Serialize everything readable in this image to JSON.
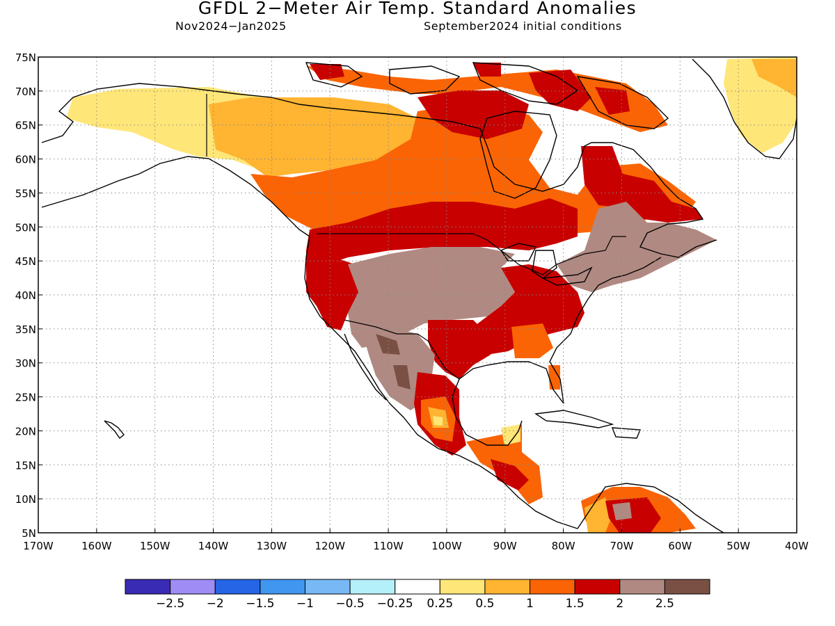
{
  "title": "GFDL 2−Meter Air Temp. Standard Anomalies",
  "subtitle_left": "Nov2024−Jan2025",
  "subtitle_right": "September2024 initial conditions",
  "map": {
    "lat_labels": [
      "75N",
      "70N",
      "65N",
      "60N",
      "55N",
      "50N",
      "45N",
      "40N",
      "35N",
      "30N",
      "25N",
      "20N",
      "15N",
      "10N",
      "5N"
    ],
    "lon_labels": [
      "170W",
      "160W",
      "150W",
      "140W",
      "130W",
      "120W",
      "110W",
      "100W",
      "90W",
      "80W",
      "70W",
      "60W",
      "50W",
      "40W"
    ],
    "lat_range": [
      5,
      75
    ],
    "lon_range": [
      -170,
      -40
    ],
    "gridlines": "dotted"
  },
  "colorbar": {
    "colors": [
      "#3a2bb4",
      "#a08cf5",
      "#2565e6",
      "#4196f0",
      "#78b8f5",
      "#b4f0fa",
      "#ffffff",
      "#ffe678",
      "#ffb432",
      "#fa6404",
      "#c80000",
      "#b08a82",
      "#7a5045"
    ],
    "labels": [
      "−2.5",
      "−2",
      "−1.5",
      "−1",
      "−0.5",
      "−0.25",
      "0.25",
      "0.5",
      "1",
      "1.5",
      "2",
      "2.5"
    ]
  }
}
